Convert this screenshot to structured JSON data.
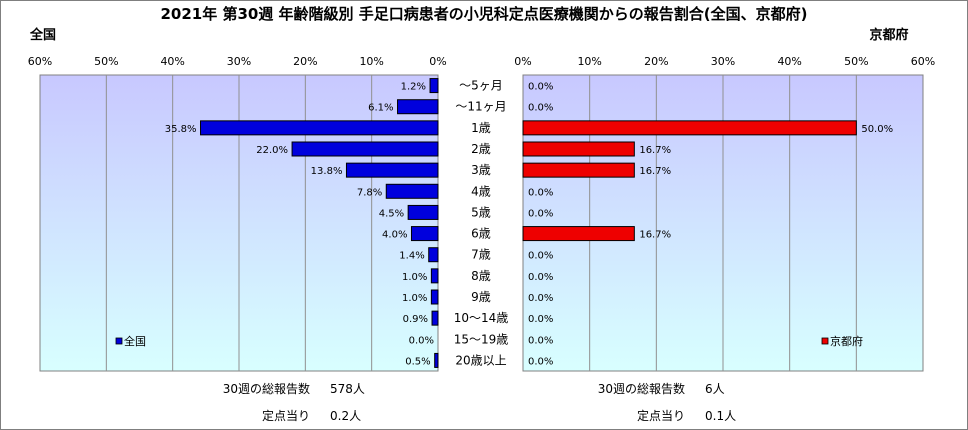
{
  "title": "2021年 第30週 年齢階級別 手足口病患者の小児科定点医療機関からの報告割合(全国、京都府)",
  "colors": {
    "left_bar": "#0000dd",
    "right_bar": "#ee0000",
    "plot_bg_top": "#c8c8ff",
    "plot_bg_bottom": "#d8ffff"
  },
  "chart_data": [
    {
      "type": "bar",
      "orientation": "horizontal",
      "direction": "right-to-left",
      "subtitle": "全国",
      "legend": "全国",
      "legend_placement": "bottom-left",
      "xlim": [
        0,
        60
      ],
      "x_ticks": [
        "60%",
        "50%",
        "40%",
        "30%",
        "20%",
        "10%",
        "0%"
      ],
      "grid": true,
      "categories": [
        "〜5ヶ月",
        "〜11ヶ月",
        "1歳",
        "2歳",
        "3歳",
        "4歳",
        "5歳",
        "6歳",
        "7歳",
        "8歳",
        "9歳",
        "10〜14歳",
        "15〜19歳",
        "20歳以上"
      ],
      "series": [
        {
          "name": "全国",
          "values": [
            1.2,
            6.1,
            35.8,
            22.0,
            13.8,
            7.8,
            4.5,
            4.0,
            1.4,
            1.0,
            1.0,
            0.9,
            0.0,
            0.5
          ]
        }
      ],
      "data_labels": [
        "1.2%",
        "6.1%",
        "35.8%",
        "22.0%",
        "13.8%",
        "7.8%",
        "4.5%",
        "4.0%",
        "1.4%",
        "1.0%",
        "1.0%",
        "0.9%",
        "0.0%",
        "0.5%"
      ]
    },
    {
      "type": "bar",
      "orientation": "horizontal",
      "direction": "left-to-right",
      "subtitle": "京都府",
      "legend": "京都府",
      "legend_placement": "bottom-right",
      "xlim": [
        0,
        60
      ],
      "x_ticks": [
        "0%",
        "10%",
        "20%",
        "30%",
        "40%",
        "50%",
        "60%"
      ],
      "grid": true,
      "categories": [
        "〜5ヶ月",
        "〜11ヶ月",
        "1歳",
        "2歳",
        "3歳",
        "4歳",
        "5歳",
        "6歳",
        "7歳",
        "8歳",
        "9歳",
        "10〜14歳",
        "15〜19歳",
        "20歳以上"
      ],
      "series": [
        {
          "name": "京都府",
          "values": [
            0.0,
            0.0,
            50.0,
            16.7,
            16.7,
            0.0,
            0.0,
            16.7,
            0.0,
            0.0,
            0.0,
            0.0,
            0.0,
            0.0
          ]
        }
      ],
      "data_labels": [
        "0.0%",
        "0.0%",
        "50.0%",
        "16.7%",
        "16.7%",
        "0.0%",
        "0.0%",
        "16.7%",
        "0.0%",
        "0.0%",
        "0.0%",
        "0.0%",
        "0.0%",
        "0.0%"
      ]
    }
  ],
  "footer": {
    "left": {
      "total_label": "30週の総報告数",
      "total_value": "578人",
      "per_label": "定点当り",
      "per_value": "0.2人"
    },
    "right": {
      "total_label": "30週の総報告数",
      "total_value": "6人",
      "per_label": "定点当り",
      "per_value": "0.1人"
    }
  }
}
